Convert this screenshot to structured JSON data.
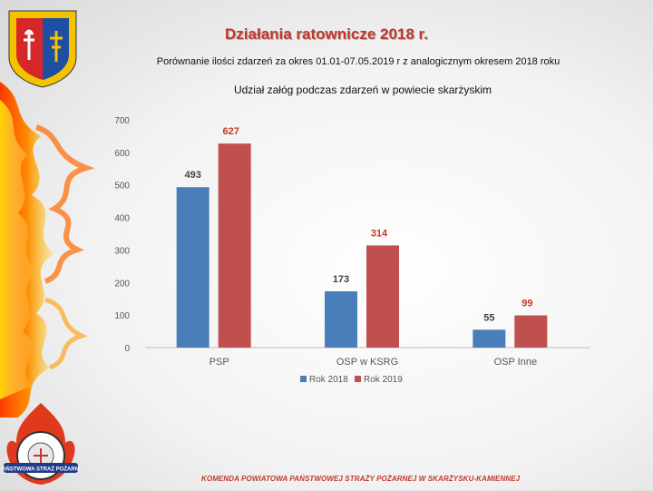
{
  "header": {
    "title": "Działania ratownicze 2018 r.",
    "subtitle": "Porównanie ilości zdarzeń za okres 01.01-07.05.2019 r z analogicznym okresem 2018 roku"
  },
  "footer": {
    "text": "KOMENDA POWIATOWA PAŃSTWOWEJ STRAŻY POŻARNEJ W SKARŻYSKU-KAMIENNEJ"
  },
  "logo_bottom": {
    "text": "PAŃSTWOWA STRAŻ POŻARNA"
  },
  "chart_data": {
    "type": "bar",
    "title": "Udział załóg podczas zdarzeń  w  powiecie skarżyskim",
    "categories": [
      "PSP",
      "OSP w KSRG",
      "OSP Inne"
    ],
    "series": [
      {
        "name": "Rok 2018",
        "values": [
          493,
          173,
          55
        ],
        "color": "#4a7ebb"
      },
      {
        "name": "Rok 2019",
        "values": [
          627,
          314,
          99
        ],
        "color": "#c0504d"
      }
    ],
    "ylim": [
      0,
      700
    ],
    "yticks": [
      0,
      100,
      200,
      300,
      400,
      500,
      600,
      700
    ],
    "grid": false,
    "legend": "bottom",
    "xlabel": "",
    "ylabel": ""
  }
}
